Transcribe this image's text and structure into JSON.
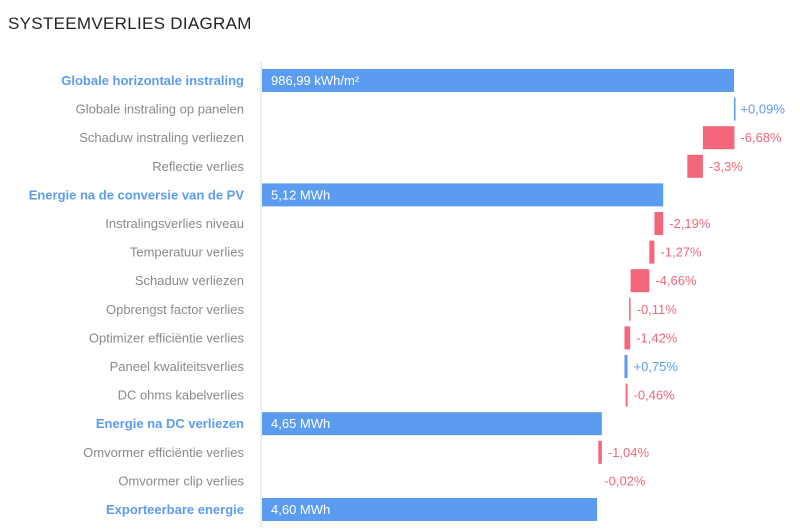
{
  "title": "SYSTEEMVERLIES DIAGRAM",
  "colors": {
    "total": "#5b9cf0",
    "loss": "#f4677a",
    "gain": "#5b9cf0",
    "minor_label": "#8a8a8a",
    "axis": "#d9dce8"
  },
  "chart_data": {
    "type": "bar",
    "orientation": "horizontal-waterfall",
    "title": "SYSTEEMVERLIES DIAGRAM",
    "xlabel": "",
    "ylabel": "",
    "grid": false,
    "steps": [
      {
        "label": "Globale horizontale instraling",
        "kind": "total",
        "value_label": "986,99 kWh/m²",
        "relative": 1.0
      },
      {
        "label": "Globale instraling op panelen",
        "kind": "delta",
        "percent": 0.09,
        "delta_label": "+0,09%"
      },
      {
        "label": "Schaduw instraling verliezen",
        "kind": "delta",
        "percent": -6.68,
        "delta_label": "-6,68%"
      },
      {
        "label": "Reflectie verlies",
        "kind": "delta",
        "percent": -3.3,
        "delta_label": "-3,3%"
      },
      {
        "label": "Energie na de conversie van de PV",
        "kind": "total",
        "value_label": "5,12 MWh",
        "relative": 0.85
      },
      {
        "label": "Instralingsverlies niveau",
        "kind": "delta",
        "percent": -2.19,
        "delta_label": "-2,19%"
      },
      {
        "label": "Temperatuur verlies",
        "kind": "delta",
        "percent": -1.27,
        "delta_label": "-1,27%"
      },
      {
        "label": "Schaduw verliezen",
        "kind": "delta",
        "percent": -4.66,
        "delta_label": "-4,66%"
      },
      {
        "label": "Opbrengst factor verlies",
        "kind": "delta",
        "percent": -0.11,
        "delta_label": "-0,11%"
      },
      {
        "label": "Optimizer efficiëntie verlies",
        "kind": "delta",
        "percent": -1.42,
        "delta_label": "-1,42%"
      },
      {
        "label": "Paneel kwaliteitsverlies",
        "kind": "delta",
        "percent": 0.75,
        "delta_label": "+0,75%"
      },
      {
        "label": "DC ohms kabelverlies",
        "kind": "delta",
        "percent": -0.46,
        "delta_label": "-0,46%"
      },
      {
        "label": "Energie na DC verliezen",
        "kind": "total",
        "value_label": "4,65 MWh",
        "relative": 0.72
      },
      {
        "label": "Omvormer efficiëntie verlies",
        "kind": "delta",
        "percent": -1.04,
        "delta_label": "-1,04%"
      },
      {
        "label": "Omvormer clip verlies",
        "kind": "delta",
        "percent": -0.02,
        "delta_label": "-0,02%"
      },
      {
        "label": "Exporteerbare energie",
        "kind": "total",
        "value_label": "4,60 MWh",
        "relative": 0.71
      }
    ]
  }
}
